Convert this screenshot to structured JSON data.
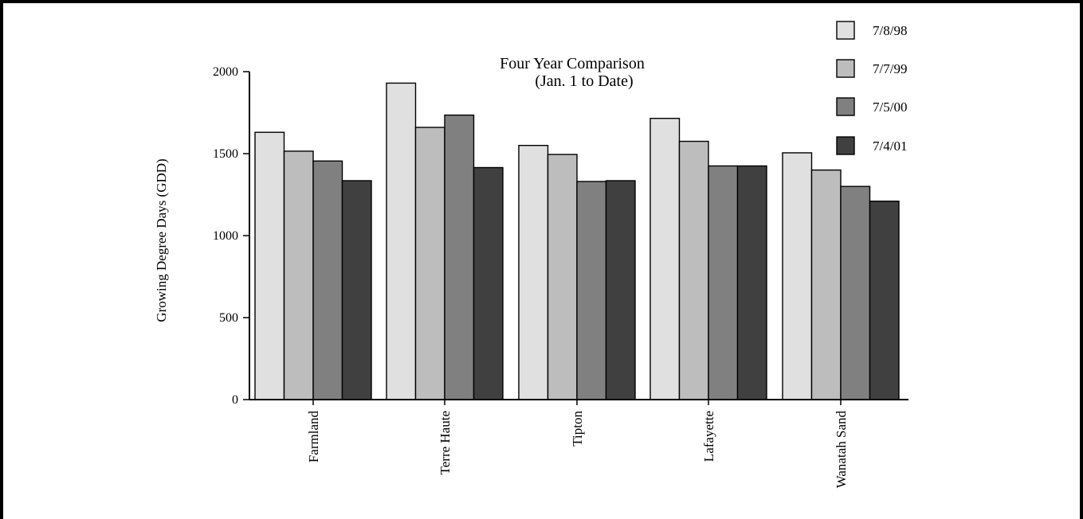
{
  "chart_data": {
    "type": "bar",
    "title": "Four Year Comparison",
    "subtitle": "(Jan. 1 to Date)",
    "xlabel": "",
    "ylabel": "Growing Degree Days (GDD)",
    "ylim": [
      0,
      2000
    ],
    "yticks": [
      "0",
      "500",
      "1000",
      "1500",
      "2000"
    ],
    "grid": false,
    "legend_position": "top-right",
    "categories": [
      "Farmland",
      "Terre Haute",
      "Tipton",
      "Lafayette",
      "Wanatah Sand"
    ],
    "series": [
      {
        "name": "7/8/98",
        "color": "#e0e0e0",
        "values": [
          1630,
          1930,
          1550,
          1715,
          1505
        ]
      },
      {
        "name": "7/7/99",
        "color": "#bdbdbd",
        "values": [
          1515,
          1660,
          1495,
          1575,
          1400
        ]
      },
      {
        "name": "7/5/00",
        "color": "#808080",
        "values": [
          1455,
          1735,
          1330,
          1425,
          1300
        ]
      },
      {
        "name": "7/4/01",
        "color": "#404040",
        "values": [
          1335,
          1415,
          1335,
          1425,
          1210
        ]
      }
    ]
  }
}
